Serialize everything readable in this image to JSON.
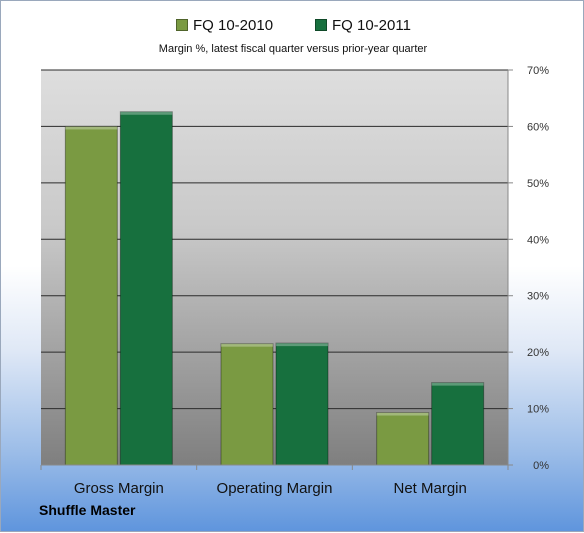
{
  "chart_data": {
    "type": "bar",
    "subtitle": "Margin %,  latest fiscal quarter versus prior-year quarter",
    "categories": [
      "Gross Margin",
      "Operating Margin",
      "Net Margin"
    ],
    "series": [
      {
        "name": "FQ 10-2010",
        "values": [
          60.0,
          21.5,
          9.3
        ],
        "color": "#7a9a42"
      },
      {
        "name": "FQ 10-2011",
        "values": [
          62.6,
          21.6,
          14.6
        ],
        "color": "#17703e"
      }
    ],
    "y_ticks": [
      "0%",
      "10%",
      "20%",
      "30%",
      "40%",
      "50%",
      "60%",
      "70%"
    ],
    "ylim": [
      0,
      70
    ],
    "grid": true,
    "legend_position": "top-center"
  },
  "brand_label": "Shuffle Master"
}
